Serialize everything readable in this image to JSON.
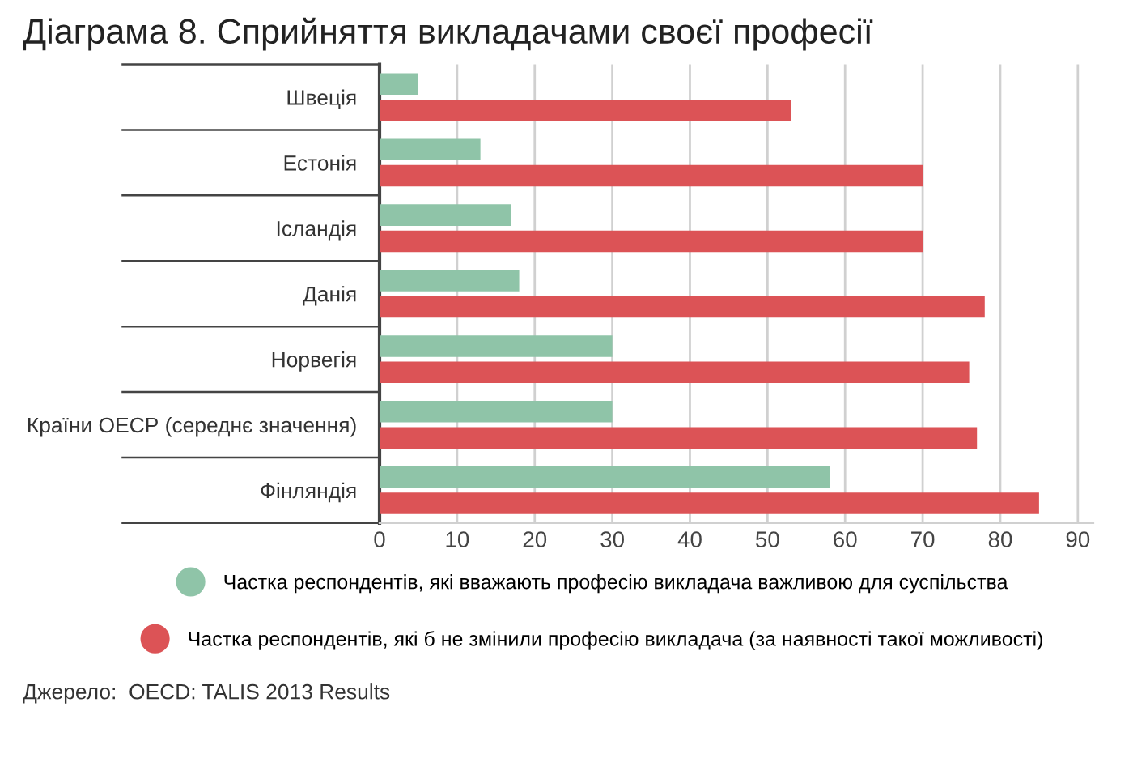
{
  "chart_data": {
    "type": "bar",
    "orientation": "horizontal",
    "title": "Діаграма 8. Сприйняття викладачами своєї професії",
    "categories": [
      "Швеція",
      "Естонія",
      "Ісландія",
      "Данія",
      "Норвегія",
      "Країни ОЕСР (середнє значення)",
      "Фінляндія"
    ],
    "series": [
      {
        "name": "Частка респондентів, які вважають професію викладача важливою для суспільства",
        "color": "#8fc4a8",
        "values": [
          5,
          13,
          17,
          18,
          30,
          30,
          58
        ]
      },
      {
        "name": "Частка респондентів, які б не змінили професію викладача (за наявності такої можливості)",
        "color": "#dc5356",
        "values": [
          53,
          70,
          70,
          78,
          76,
          77,
          85
        ]
      }
    ],
    "xlim": [
      0,
      92
    ],
    "xticks": [
      0,
      10,
      20,
      30,
      40,
      50,
      60,
      70,
      80,
      90
    ],
    "grid": "x",
    "legend": "bottom",
    "annotations": [
      "Джерело:  OECD: TALIS 2013 Results"
    ]
  }
}
